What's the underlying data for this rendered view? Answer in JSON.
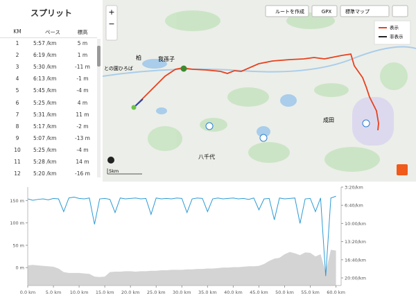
{
  "split_table": {
    "title": "スプリット",
    "headers": [
      "KM",
      "ペース",
      "標高"
    ],
    "rows": [
      [
        "1",
        "5:57 /km",
        "5 m"
      ],
      [
        "2",
        "6:19 /km",
        "1 m"
      ],
      [
        "3",
        "5:30 /km",
        "-11 m"
      ],
      [
        "4",
        "6:13 /km",
        "-1 m"
      ],
      [
        "5",
        "5:45 /km",
        "-4 m"
      ],
      [
        "6",
        "5:25 /km",
        "4 m"
      ],
      [
        "7",
        "5:31 /km",
        "11 m"
      ],
      [
        "8",
        "5:17 /km",
        "-2 m"
      ],
      [
        "9",
        "5:07 /km",
        "-13 m"
      ],
      [
        "10",
        "5:25 /km",
        "-4 m"
      ],
      [
        "11",
        "5:28 /km",
        "14 m"
      ],
      [
        "12",
        "5:20 /km",
        "-16 m"
      ]
    ]
  },
  "map": {
    "zoom_in": "+",
    "zoom_out": "−",
    "buttons": [
      "ルートを作成",
      "GPX",
      "標準マップ"
    ],
    "legend": [
      "表示",
      "非表示"
    ],
    "labels": [
      "柏",
      "我孫子",
      "との園ひろば",
      "成田",
      "八千代"
    ],
    "scale": "5km"
  },
  "chart_data": {
    "type": "area-line",
    "x": [
      0,
      1,
      2,
      3,
      4,
      5,
      6,
      7,
      8,
      9,
      10,
      11,
      12,
      13,
      14,
      15,
      16,
      17,
      18,
      19,
      20,
      21,
      22,
      23,
      24,
      25,
      26,
      27,
      28,
      29,
      30,
      31,
      32,
      33,
      34,
      35,
      36,
      37,
      38,
      39,
      40,
      41,
      42,
      43,
      44,
      45,
      46,
      47,
      48,
      49,
      50,
      51,
      52,
      53,
      54,
      55,
      56,
      57,
      58,
      59,
      60
    ],
    "series": [
      {
        "color": "#d4d4d4",
        "values": [
          5,
          6,
          5,
          4,
          3,
          2,
          -2,
          -10,
          -12,
          -12,
          -12,
          -13,
          -14,
          -20,
          -21,
          -20,
          -10,
          -9,
          -9,
          -8,
          -8,
          -9,
          -8,
          -8,
          -7,
          -7,
          -6,
          -6,
          -5,
          -5,
          -5,
          -4,
          -4,
          -3,
          -3,
          -2,
          -2,
          -1,
          0,
          0,
          1,
          1,
          2,
          3,
          3,
          4,
          8,
          15,
          20,
          22,
          30,
          35,
          32,
          28,
          34,
          33,
          25,
          30,
          -10,
          40,
          38
        ]
      },
      {
        "color": "#2c9ad4",
        "axis": "y2",
        "values": [
          330,
          345,
          335,
          330,
          340,
          325,
          330,
          470,
          320,
          310,
          325,
          330,
          320,
          610,
          330,
          325,
          335,
          480,
          320,
          330,
          325,
          320,
          330,
          325,
          500,
          320,
          330,
          325,
          330,
          320,
          325,
          480,
          330,
          320,
          325,
          470,
          330,
          320,
          330,
          325,
          320,
          330,
          325,
          335,
          320,
          450,
          330,
          325,
          560,
          320,
          330,
          325,
          320,
          600,
          330,
          325,
          470,
          320,
          1180,
          320,
          300
        ]
      }
    ],
    "xlim": [
      0,
      61
    ],
    "xticks": [
      {
        "value": 0,
        "label": "0.0 km"
      },
      {
        "value": 5,
        "label": "5.0 km"
      },
      {
        "value": 10,
        "label": "10.0 km"
      },
      {
        "value": 15,
        "label": "15.0 km"
      },
      {
        "value": 20,
        "label": "20.0 km"
      },
      {
        "value": 25,
        "label": "25.0 km"
      },
      {
        "value": 30,
        "label": "30.0 km"
      },
      {
        "value": 35,
        "label": "35.0 km"
      },
      {
        "value": 40,
        "label": "40.0 km"
      },
      {
        "value": 45,
        "label": "45.0 km"
      },
      {
        "value": 50,
        "label": "50.0 km"
      },
      {
        "value": 55,
        "label": "55.0 km"
      },
      {
        "value": 60,
        "label": "60.0 km"
      }
    ],
    "ylim": [
      -40,
      180
    ],
    "yticks": [
      {
        "value": 0,
        "label": "0 m"
      },
      {
        "value": 50,
        "label": "50 m"
      },
      {
        "value": 100,
        "label": "100 m"
      },
      {
        "value": 150,
        "label": "150 m"
      }
    ],
    "y2lim": [
      1284,
      200
    ],
    "y2ticks": [
      {
        "value": 200,
        "label": "3:20/km"
      },
      {
        "value": 400,
        "label": "6:40/km"
      },
      {
        "value": 600,
        "label": "10:00/km"
      },
      {
        "value": 800,
        "label": "13:20/km"
      },
      {
        "value": 1000,
        "label": "16:40/km"
      },
      {
        "value": 1200,
        "label": "20:00/km"
      }
    ]
  }
}
